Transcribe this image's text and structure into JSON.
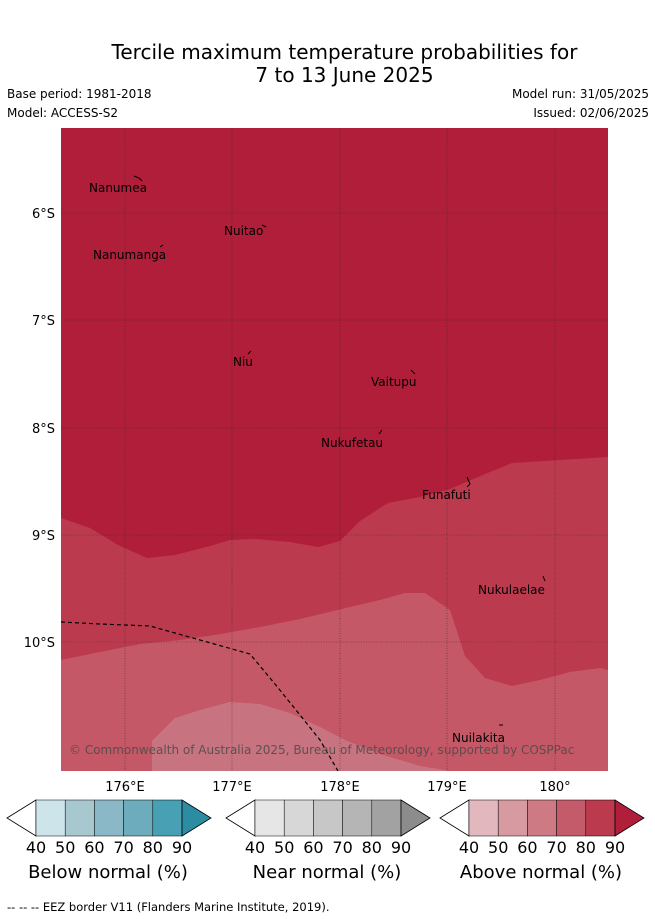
{
  "title_line1": "Tercile maximum temperature probabilities for",
  "title_line2": "7 to 13 June 2025",
  "base_period": "Base period: 1981-2018",
  "model": "Model: ACCESS-S2",
  "model_run": "Model run: 31/05/2025",
  "issued": "Issued: 02/06/2025",
  "map": {
    "lat_labels": [
      "6°S",
      "7°S",
      "8°S",
      "9°S",
      "10°S"
    ],
    "lon_labels": [
      "176°E",
      "177°E",
      "178°E",
      "179°E",
      "180°"
    ],
    "places": [
      {
        "name": "Nanumea"
      },
      {
        "name": "Nuitao"
      },
      {
        "name": "Nanumanga"
      },
      {
        "name": "Niu"
      },
      {
        "name": "Vaitupu"
      },
      {
        "name": "Nukufetau"
      },
      {
        "name": "Funafuti"
      },
      {
        "name": "Nukulaelae"
      },
      {
        "name": "Nuilakita"
      }
    ],
    "copyright": "© Commonwealth of Australia 2025, Bureau of Meteorology, supported by COSPPac",
    "fill_colors": [
      "#b01e3a",
      "#bc3a4d",
      "#c55866",
      "#c87380"
    ]
  },
  "colorbars": [
    {
      "label": "Below normal (%)",
      "ticks": [
        "40",
        "50",
        "60",
        "70",
        "80",
        "90"
      ],
      "colors": [
        "#cde4ea",
        "#a8c8d0",
        "#8ab8c6",
        "#6cacbc",
        "#48a0b4",
        "#2b8ca2"
      ]
    },
    {
      "label": "Near normal (%)",
      "ticks": [
        "40",
        "50",
        "60",
        "70",
        "80",
        "90"
      ],
      "colors": [
        "#e6e6e6",
        "#d7d7d7",
        "#c7c7c7",
        "#b5b5b5",
        "#a2a2a2",
        "#8c8c8c"
      ]
    },
    {
      "label": "Above normal (%)",
      "ticks": [
        "40",
        "50",
        "60",
        "70",
        "80",
        "90"
      ],
      "colors": [
        "#e2b8be",
        "#d79aa1",
        "#ce7a84",
        "#c45b6a",
        "#bb3a4e",
        "#b01e3a"
      ]
    }
  ],
  "footer": "-- -- -- EEZ border V11 (Flanders Marine Institute, 2019)."
}
